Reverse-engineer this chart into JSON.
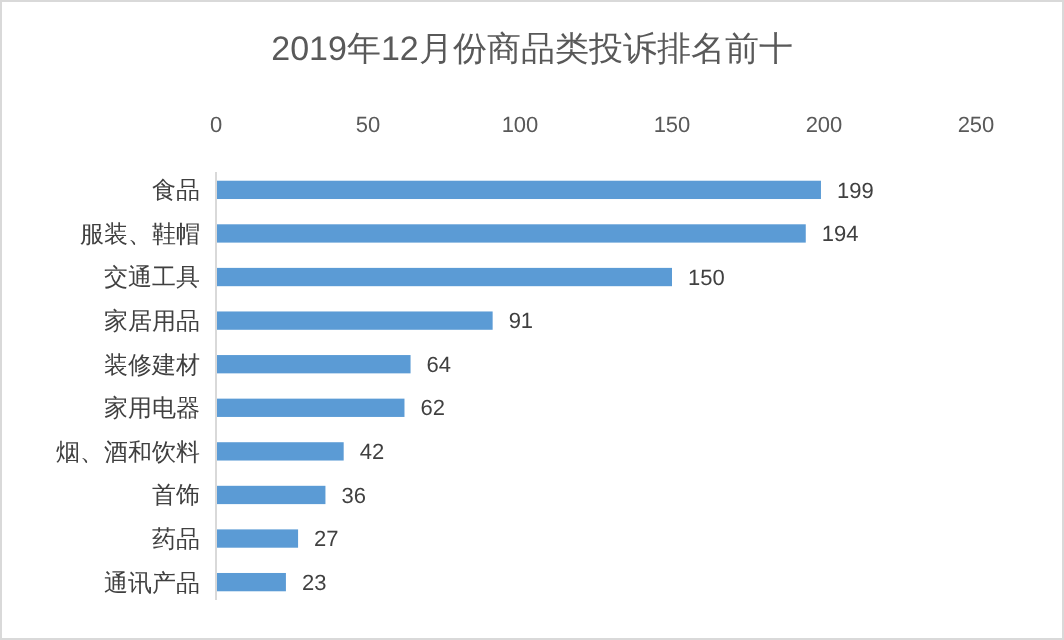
{
  "chart_data": {
    "type": "bar",
    "orientation": "horizontal",
    "title": "2019年12月份商品类投诉排名前十",
    "categories": [
      "食品",
      "服装、鞋帽",
      "交通工具",
      "家居用品",
      "装修建材",
      "家用电器",
      "烟、酒和饮料",
      "首饰",
      "药品",
      "通讯产品"
    ],
    "values": [
      199,
      194,
      150,
      91,
      64,
      62,
      42,
      36,
      27,
      23
    ],
    "color": "#5b9bd5",
    "xlim": [
      0,
      250
    ],
    "xticks": [
      0,
      50,
      100,
      150,
      200,
      250
    ],
    "grid": false,
    "data_labels": true
  }
}
